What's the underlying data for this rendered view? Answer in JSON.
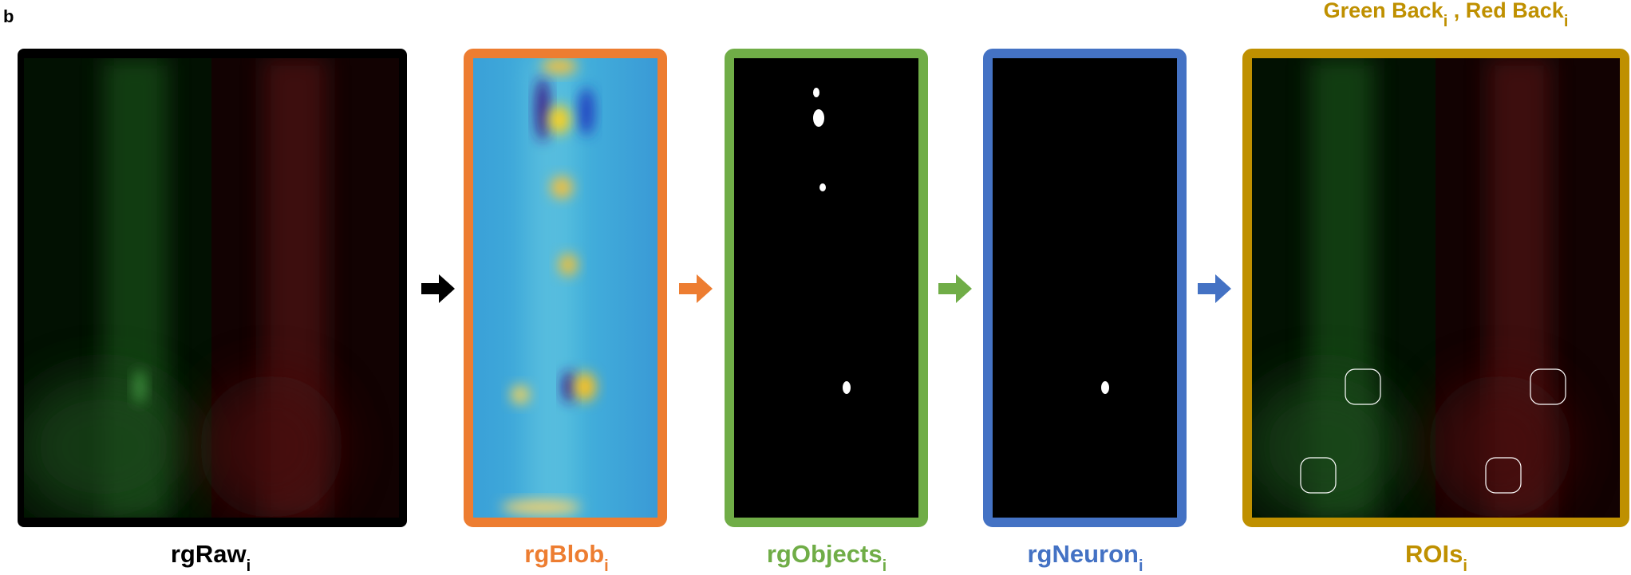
{
  "panel_label": "b",
  "top_label": {
    "text1": "Green Back",
    "sub1": "i",
    "text2": " , Red Back",
    "sub2": "i"
  },
  "stages": [
    {
      "label": "rgRaw",
      "subscript": "i"
    },
    {
      "label": "rgBlob",
      "subscript": "i"
    },
    {
      "label": "rgObjects",
      "subscript": "i"
    },
    {
      "label": "rgNeuron",
      "subscript": "i"
    },
    {
      "label": "ROIs",
      "subscript": "i"
    }
  ]
}
